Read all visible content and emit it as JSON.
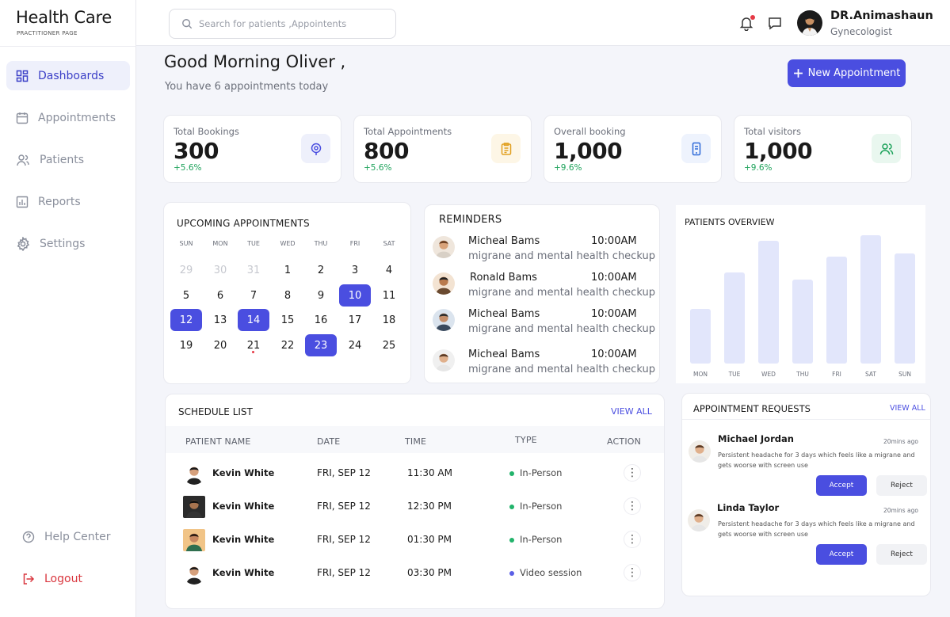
{
  "brand": {
    "title": "Health Care",
    "subtitle": "PRACTITIONER PAGE"
  },
  "nav": [
    {
      "label": "Dashboards",
      "icon": "dashboard-icon",
      "active": true
    },
    {
      "label": "Appointments",
      "icon": "calendar-icon"
    },
    {
      "label": "Patients",
      "icon": "users-icon"
    },
    {
      "label": "Reports",
      "icon": "chart-icon"
    },
    {
      "label": "Settings",
      "icon": "gear-icon"
    }
  ],
  "nav_bottom": {
    "help": "Help Center",
    "logout": "Logout"
  },
  "search": {
    "placeholder": "Search for patients ,Appointents"
  },
  "user": {
    "name": "DR.Animashaun",
    "role": "Gynecologist"
  },
  "greeting": {
    "title": "Good Morning Oliver ,",
    "subtitle": "You have 6 appointments today",
    "new_button": "New Appointment"
  },
  "stats": [
    {
      "label": "Total Bookings",
      "value": "300",
      "change": "+5.6%",
      "icon": "target-icon",
      "color": "#eef0fb"
    },
    {
      "label": "Total Appointments",
      "value": "800",
      "change": "+5.6%",
      "icon": "clipboard-icon",
      "color": "#fdf6e6"
    },
    {
      "label": "Overall booking",
      "value": "1,000",
      "change": "+9.6%",
      "icon": "phone-icon",
      "color": "#eef3fd"
    },
    {
      "label": "Total visitors",
      "value": "1,000",
      "change": "+9.6%",
      "icon": "visitors-icon",
      "color": "#e9f7ef"
    }
  ],
  "calendar": {
    "title": "UPCOMING  APPOINTMENTS",
    "weekdays": [
      "SUN",
      "MON",
      "TUE",
      "WED",
      "THU",
      "FRI",
      "SAT"
    ],
    "weeks": [
      [
        "29",
        "30",
        "31",
        "1",
        "2",
        "3",
        "4"
      ],
      [
        "5",
        "6",
        "7",
        "8",
        "9",
        "10",
        "11"
      ],
      [
        "12",
        "13",
        "14",
        "15",
        "16",
        "17",
        "18"
      ],
      [
        "19",
        "20",
        "21",
        "22",
        "23",
        "24",
        "25"
      ]
    ]
  },
  "reminders": {
    "title": "REMINDERS",
    "items": [
      {
        "name": "Micheal Bams",
        "time": "10:00AM",
        "desc": "migrane and mental health checkup"
      },
      {
        "name": "Ronald  Bams",
        "time": "10:00AM",
        "desc": "migrane and mental health checkup"
      },
      {
        "name": "Micheal Bams",
        "time": "10:00AM",
        "desc": "migrane and mental health checkup"
      },
      {
        "name": "Micheal Bams",
        "time": "10:00AM",
        "desc": "migrane and mental health checkup"
      }
    ]
  },
  "chart_data": {
    "type": "bar",
    "title": "PATIENTS OVERVIEW",
    "categories": [
      "MON",
      "TUE",
      "WED",
      "THU",
      "FRI",
      "SAT",
      "SUN"
    ],
    "values": [
      42,
      70,
      94,
      64,
      82,
      98,
      84
    ],
    "ylim": [
      0,
      100
    ],
    "grid": false
  },
  "schedule": {
    "title": "SCHEDULE LIST",
    "view_all": "VIEW ALL",
    "headers": [
      "PATIENT NAME",
      "DATE",
      "TIME",
      "TYPE",
      "ACTION"
    ],
    "rows": [
      {
        "name": "Kevin White",
        "date": "FRI, SEP 12",
        "time": "11:30 AM",
        "type": "In-Person",
        "dot": "#22b36b"
      },
      {
        "name": "Kevin White",
        "date": "FRI, SEP 12",
        "time": "12:30 PM",
        "type": "In-Person",
        "dot": "#22b36b"
      },
      {
        "name": "Kevin White",
        "date": "FRI, SEP 12",
        "time": "01:30 PM",
        "type": "In-Person",
        "dot": "#22b36b"
      },
      {
        "name": "Kevin White",
        "date": "FRI, SEP 12",
        "time": "03:30 PM",
        "type": "Video session",
        "dot": "#5b5fe6"
      }
    ]
  },
  "requests": {
    "title": "APPOINTMENT REQUESTS",
    "view_all": "VIEW ALL",
    "items": [
      {
        "name": "Michael Jordan",
        "time": "20mins ago",
        "text": "Persistent headache for 3 days which feels like a migrane and gets woorse with screen use",
        "accept": "Accept",
        "reject": "Reject"
      },
      {
        "name": "Linda Taylor",
        "time": "20mins ago",
        "text": "Persistent headache for 3 days which feels like a migrane and gets woorse with screen use",
        "accept": "Accept",
        "reject": "Reject"
      }
    ]
  },
  "colors": {
    "accent": "#4a4ee0",
    "success": "#1fa35c",
    "danger": "#d9363e"
  }
}
